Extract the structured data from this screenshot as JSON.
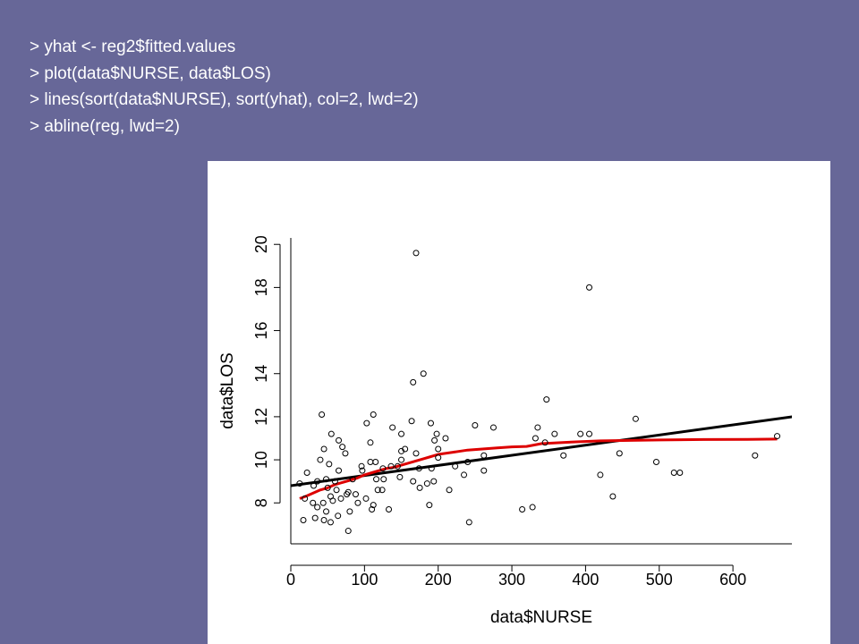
{
  "code_lines": [
    "> yhat <- reg2$fitted.values",
    "> plot(data$NURSE, data$LOS)",
    "> lines(sort(data$NURSE), sort(yhat), col=2, lwd=2)",
    "> abline(reg, lwd=2)"
  ],
  "chart_data": {
    "type": "scatter",
    "title": "",
    "xlabel": "data$NURSE",
    "ylabel": "data$LOS",
    "xlim": [
      0,
      680
    ],
    "ylim": [
      6.1,
      20.3
    ],
    "xticks": [
      0,
      100,
      200,
      300,
      400,
      500,
      600
    ],
    "yticks": [
      8,
      10,
      12,
      14,
      16,
      18,
      20
    ],
    "grid": false,
    "colors": {
      "points": "#000000",
      "fitted_line": "#dd0000",
      "regression_line": "#000000",
      "background": "#ffffff"
    },
    "points": [
      [
        170,
        19.6
      ],
      [
        405,
        18.0
      ],
      [
        180,
        14.0
      ],
      [
        166,
        13.6
      ],
      [
        347,
        12.8
      ],
      [
        42,
        12.1
      ],
      [
        112,
        12.1
      ],
      [
        164,
        11.8
      ],
      [
        468,
        11.9
      ],
      [
        190,
        11.7
      ],
      [
        103,
        11.7
      ],
      [
        250,
        11.6
      ],
      [
        275,
        11.5
      ],
      [
        335,
        11.5
      ],
      [
        138,
        11.5
      ],
      [
        55,
        11.2
      ],
      [
        150,
        11.2
      ],
      [
        198,
        11.2
      ],
      [
        358,
        11.2
      ],
      [
        393,
        11.2
      ],
      [
        405,
        11.2
      ],
      [
        660,
        11.1
      ],
      [
        65,
        10.9
      ],
      [
        195,
        10.9
      ],
      [
        210,
        11.0
      ],
      [
        108,
        10.8
      ],
      [
        332,
        11.0
      ],
      [
        345,
        10.8
      ],
      [
        45,
        10.5
      ],
      [
        70,
        10.6
      ],
      [
        150,
        10.4
      ],
      [
        155,
        10.5
      ],
      [
        200,
        10.5
      ],
      [
        74,
        10.3
      ],
      [
        170,
        10.3
      ],
      [
        262,
        10.2
      ],
      [
        370,
        10.2
      ],
      [
        446,
        10.3
      ],
      [
        630,
        10.2
      ],
      [
        40,
        10.0
      ],
      [
        52,
        9.8
      ],
      [
        108,
        9.9
      ],
      [
        96,
        9.7
      ],
      [
        115,
        9.9
      ],
      [
        136,
        9.7
      ],
      [
        150,
        10.0
      ],
      [
        200,
        10.1
      ],
      [
        240,
        9.9
      ],
      [
        496,
        9.9
      ],
      [
        22,
        9.4
      ],
      [
        65,
        9.5
      ],
      [
        97,
        9.5
      ],
      [
        125,
        9.6
      ],
      [
        145,
        9.7
      ],
      [
        174,
        9.6
      ],
      [
        191,
        9.6
      ],
      [
        223,
        9.7
      ],
      [
        262,
        9.5
      ],
      [
        420,
        9.3
      ],
      [
        520,
        9.4
      ],
      [
        528,
        9.4
      ],
      [
        36,
        9.0
      ],
      [
        48,
        9.1
      ],
      [
        60,
        9.0
      ],
      [
        84,
        9.1
      ],
      [
        116,
        9.1
      ],
      [
        126,
        9.1
      ],
      [
        148,
        9.2
      ],
      [
        166,
        9.0
      ],
      [
        185,
        8.9
      ],
      [
        194,
        9.0
      ],
      [
        235,
        9.3
      ],
      [
        12,
        8.9
      ],
      [
        31,
        8.8
      ],
      [
        50,
        8.7
      ],
      [
        62,
        8.6
      ],
      [
        78,
        8.5
      ],
      [
        118,
        8.6
      ],
      [
        124,
        8.6
      ],
      [
        175,
        8.7
      ],
      [
        215,
        8.6
      ],
      [
        88,
        8.4
      ],
      [
        102,
        8.2
      ],
      [
        54,
        8.3
      ],
      [
        68,
        8.2
      ],
      [
        76,
        8.4
      ],
      [
        19,
        8.2
      ],
      [
        30,
        8.0
      ],
      [
        44,
        8.0
      ],
      [
        57,
        8.1
      ],
      [
        91,
        8.0
      ],
      [
        112,
        7.9
      ],
      [
        133,
        7.7
      ],
      [
        188,
        7.9
      ],
      [
        36,
        7.8
      ],
      [
        48,
        7.6
      ],
      [
        80,
        7.6
      ],
      [
        110,
        7.7
      ],
      [
        314,
        7.7
      ],
      [
        328,
        7.8
      ],
      [
        437,
        8.3
      ],
      [
        17,
        7.2
      ],
      [
        33,
        7.3
      ],
      [
        45,
        7.2
      ],
      [
        54,
        7.1
      ],
      [
        64,
        7.4
      ],
      [
        242,
        7.1
      ],
      [
        78,
        6.7
      ]
    ],
    "fitted_line": [
      [
        12,
        8.2
      ],
      [
        20,
        8.3
      ],
      [
        30,
        8.45
      ],
      [
        40,
        8.6
      ],
      [
        50,
        8.7
      ],
      [
        60,
        8.85
      ],
      [
        70,
        8.95
      ],
      [
        80,
        9.05
      ],
      [
        90,
        9.15
      ],
      [
        100,
        9.3
      ],
      [
        110,
        9.4
      ],
      [
        120,
        9.5
      ],
      [
        130,
        9.6
      ],
      [
        140,
        9.65
      ],
      [
        150,
        9.75
      ],
      [
        160,
        9.85
      ],
      [
        170,
        9.95
      ],
      [
        180,
        10.05
      ],
      [
        190,
        10.15
      ],
      [
        200,
        10.25
      ],
      [
        220,
        10.35
      ],
      [
        240,
        10.45
      ],
      [
        260,
        10.5
      ],
      [
        280,
        10.55
      ],
      [
        300,
        10.6
      ],
      [
        320,
        10.62
      ],
      [
        340,
        10.75
      ],
      [
        380,
        10.82
      ],
      [
        420,
        10.88
      ],
      [
        460,
        10.9
      ],
      [
        500,
        10.92
      ],
      [
        560,
        10.94
      ],
      [
        620,
        10.95
      ],
      [
        660,
        10.96
      ]
    ],
    "regression_line": {
      "intercept": 8.8,
      "slope": 0.0047
    }
  }
}
